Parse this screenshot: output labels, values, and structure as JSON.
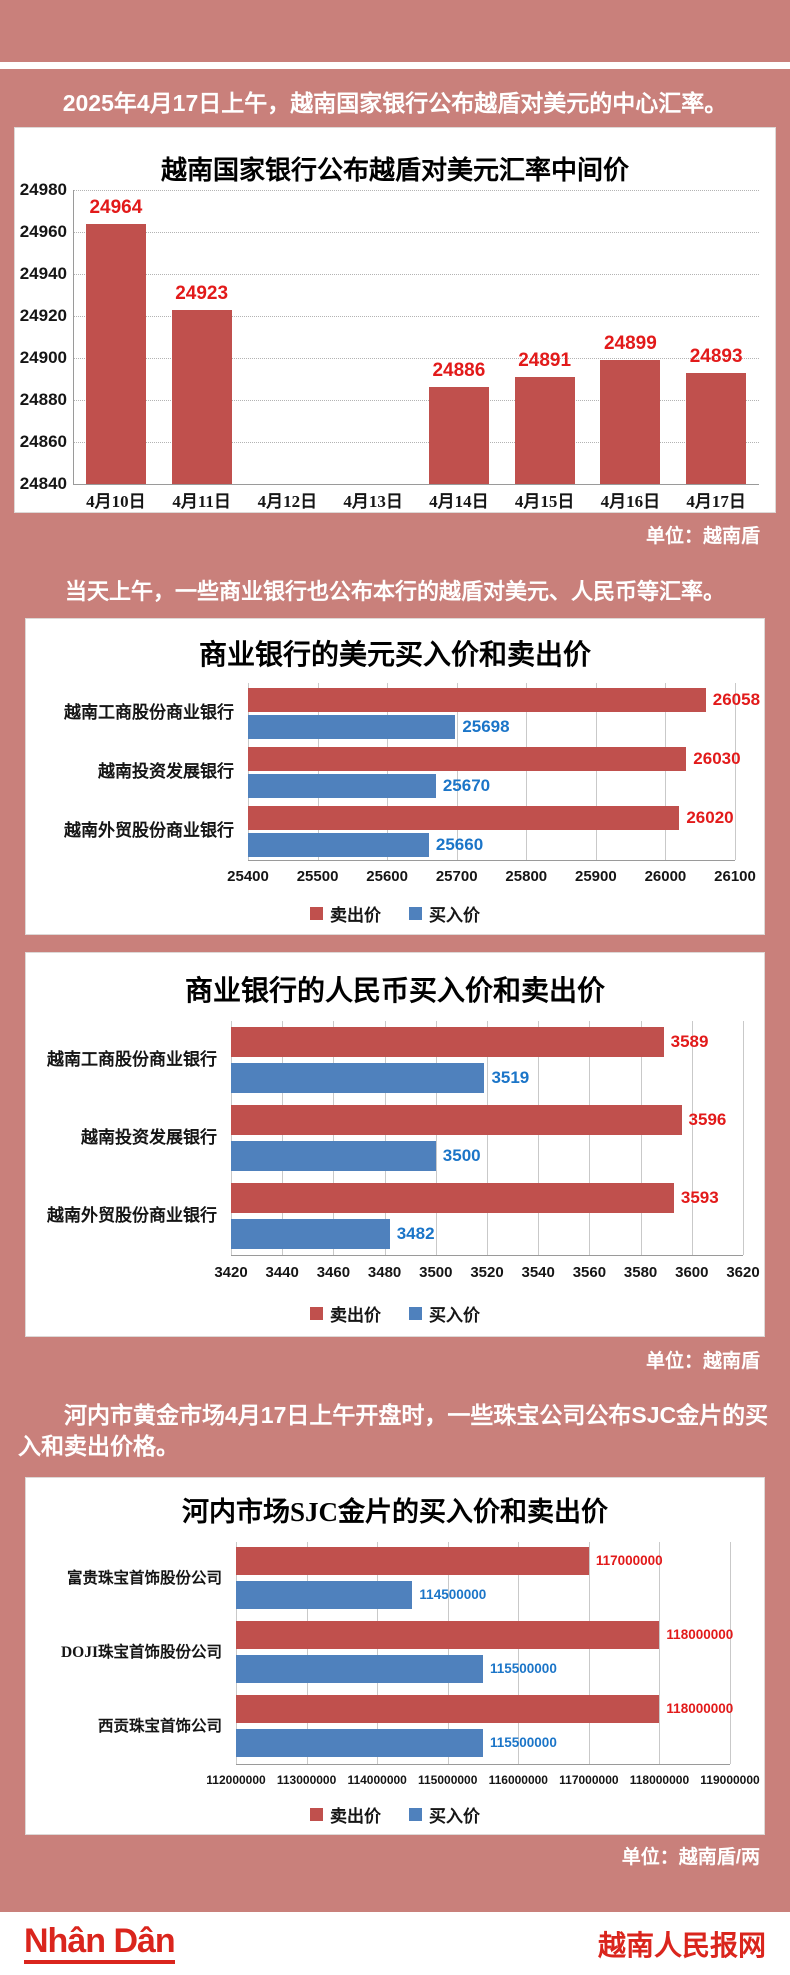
{
  "page": {
    "intro1": "2025年4月17日上午，越南国家银行公布越盾对美元的中心汇率。",
    "intro2": "当天上午，一些商业银行也公布本行的越盾对美元、人民币等汇率。",
    "intro3": "河内市黄金市场4月17日上午开盘时，一些珠宝公司公布SJC金片的买入和卖出价格。",
    "footer": {
      "logo": "Nhân Dân",
      "site_name": "越南人民报网"
    }
  },
  "colors": {
    "background": "#c9807b",
    "sell_bar": "#c0504d",
    "buy_bar": "#4f81bd",
    "sell_value_label": "#e21a1a",
    "buy_value_label": "#1b75c8",
    "brand_red": "#da251d"
  },
  "chart_data": [
    {
      "type": "bar",
      "title": "越南国家银行公布越盾对美元汇率中间价",
      "categories": [
        "4月10日",
        "4月11日",
        "4月12日",
        "4月13日",
        "4月14日",
        "4月15日",
        "4月16日",
        "4月17日"
      ],
      "values": [
        24964,
        24923,
        null,
        null,
        24886,
        24891,
        24899,
        24893
      ],
      "ylim": [
        24840,
        24980
      ],
      "ytick_step": 20,
      "grid": "horizontal-dotted",
      "unit": "单位：越南盾"
    },
    {
      "type": "hbar",
      "title": "商业银行的美元买入价和卖出价",
      "categories": [
        "越南工商股份商业银行",
        "越南投资发展银行",
        "越南外贸股份商业银行"
      ],
      "series": [
        {
          "name": "卖出价",
          "values": [
            26058,
            26030,
            26020
          ]
        },
        {
          "name": "买入价",
          "values": [
            25698,
            25670,
            25660
          ]
        }
      ],
      "xlim": [
        25400,
        26100
      ],
      "xtick_step": 100,
      "legend_position": "bottom"
    },
    {
      "type": "hbar",
      "title": "商业银行的人民币买入价和卖出价",
      "categories": [
        "越南工商股份商业银行",
        "越南投资发展银行",
        "越南外贸股份商业银行"
      ],
      "series": [
        {
          "name": "卖出价",
          "values": [
            3589,
            3596,
            3593
          ]
        },
        {
          "name": "买入价",
          "values": [
            3519,
            3500,
            3482
          ]
        }
      ],
      "xlim": [
        3420,
        3620
      ],
      "xtick_step": 20,
      "legend_position": "bottom",
      "unit": "单位：越南盾"
    },
    {
      "type": "hbar",
      "title": "河内市场SJC金片的买入价和卖出价",
      "categories": [
        "富贵珠宝首饰股份公司",
        "DOJI珠宝首饰股份公司",
        "西贡珠宝首饰公司"
      ],
      "series": [
        {
          "name": "卖出价",
          "values": [
            117000000,
            118000000,
            118000000
          ]
        },
        {
          "name": "买入价",
          "values": [
            114500000,
            115500000,
            115500000
          ]
        }
      ],
      "xlim": [
        112000000,
        119000000
      ],
      "xtick_step": 1000000,
      "legend_position": "bottom",
      "unit": "单位：越南盾/两"
    }
  ]
}
